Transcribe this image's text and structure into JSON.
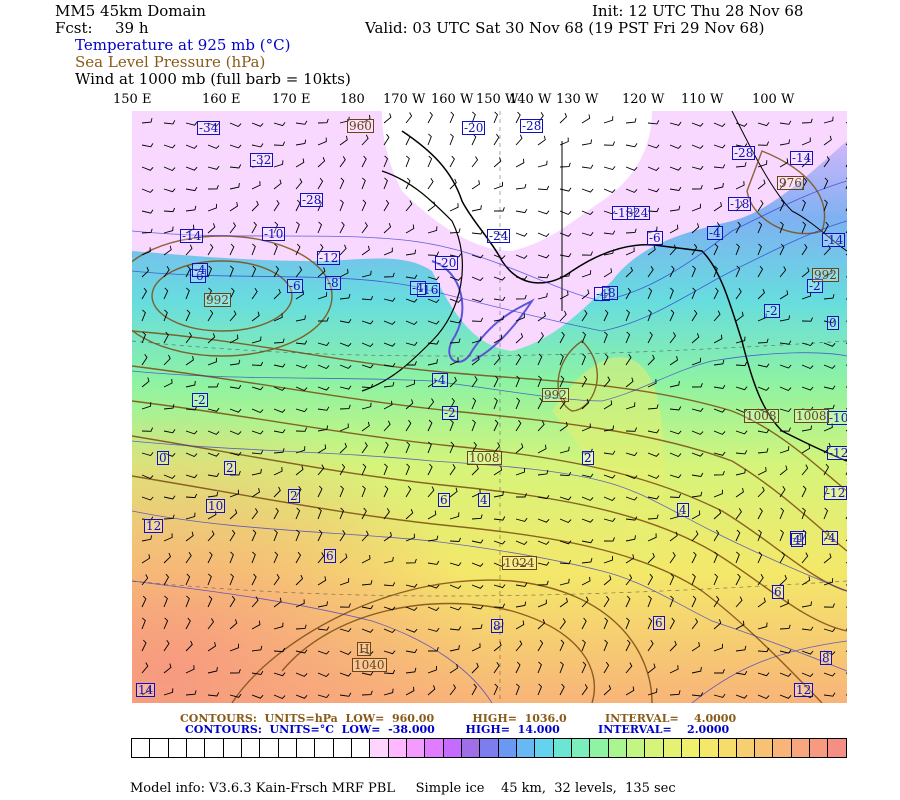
{
  "header": {
    "domain": "MM5 45km Domain",
    "init": "Init: 12 UTC Thu 28 Nov 68",
    "fcst_label": "Fcst:",
    "fcst_value": "39 h",
    "valid": "Valid: 03 UTC Sat 30 Nov 68 (19 PST Fri 29 Nov 68)",
    "field_temp": "Temperature at 925 mb (°C)",
    "field_slp": "Sea Level Pressure (hPa)",
    "field_wind": "Wind at 1000 mb (full barb = 10kts)"
  },
  "longitudes": [
    "150 E",
    "160 E",
    "170 E",
    "180",
    "170 W",
    "160 W",
    "150 W",
    "140 W",
    "130 W",
    "120 W",
    "110 W",
    "100 W"
  ],
  "temp_labels": [
    "-34",
    "-32",
    "-28",
    "-20",
    "-28",
    "-18",
    "-28",
    "-24",
    "-18",
    "-14",
    "-10",
    "-12",
    "-6",
    "-8",
    "-6",
    "-20",
    "-16",
    "-24",
    "-14",
    "-6",
    "-4",
    "-2",
    "-4",
    "-2",
    "0",
    "2",
    "2",
    "0",
    "-2",
    "-14",
    "-10",
    "-4",
    "-12",
    "-4",
    "-8",
    "-12",
    "-4",
    "-2",
    "2",
    "4",
    "6",
    "4",
    "-4",
    "2",
    "6",
    "4",
    "6",
    "8",
    "6",
    "8",
    "12",
    "10",
    "14",
    "-4",
    "12"
  ],
  "pressure_labels": [
    "960",
    "976",
    "992",
    "992",
    "992",
    "1008",
    "1008",
    "1024",
    "1008",
    "H",
    "1040"
  ],
  "legend": {
    "slp_line": "CONTOURS:  UNITS=hPa  LOW=  960.00          HIGH=  1036.0          INTERVAL=    4.0000",
    "temp_line": "CONTOURS:  UNITS=°C  LOW=  -38.000        HIGH=  14.000          INTERVAL=    2.0000"
  },
  "colors": {
    "temp_text": "#0000cc",
    "slp_text": "#8a5a18",
    "scale": [
      "#ffffff",
      "#ffffff",
      "#ffffff",
      "#ffffff",
      "#ffffff",
      "#ffffff",
      "#ffffff",
      "#ffffff",
      "#ffffff",
      "#ffffff",
      "#ffffff",
      "#ffffff",
      "#ffffff",
      "#ffd5ff",
      "#ffb8ff",
      "#f39bff",
      "#e07cff",
      "#c56bff",
      "#a06ee9",
      "#7b7eec",
      "#6b98f2",
      "#67b8f3",
      "#64d3ee",
      "#6be6d2",
      "#7aeebb",
      "#8ef3a2",
      "#a9f590",
      "#c2f582",
      "#d6f47a",
      "#e5f172",
      "#eff06c",
      "#f4e86a",
      "#f6dc6c",
      "#f7cf70",
      "#f8c274",
      "#f8b479",
      "#f8a67e",
      "#f79a80",
      "#f58e84"
    ]
  },
  "footer": "Model info: V3.6.3 Kain-Frsch MRF PBL     Simple ice    45 km,  32 levels,  135 sec"
}
